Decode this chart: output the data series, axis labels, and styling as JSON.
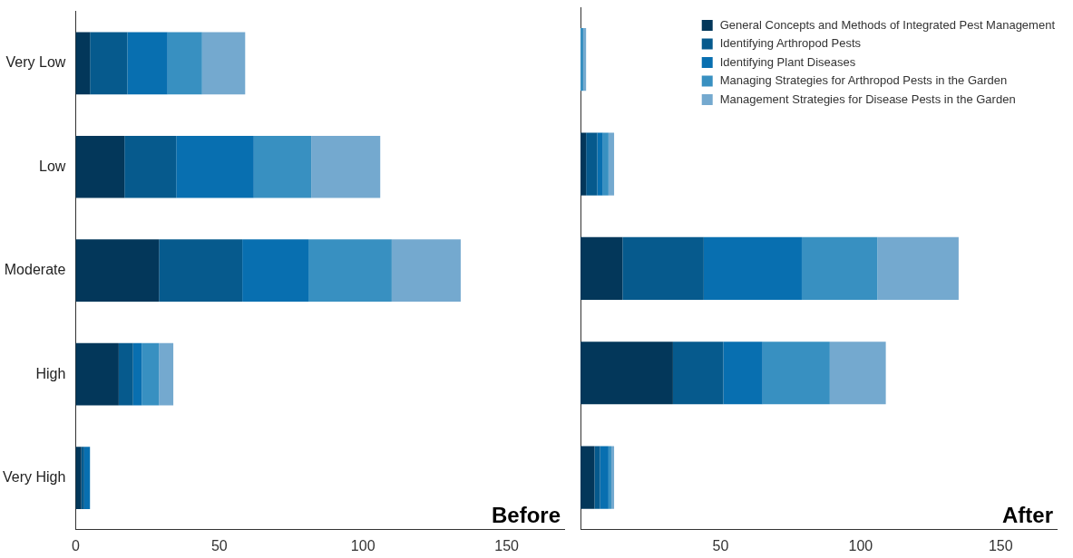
{
  "chart_data": [
    {
      "type": "bar",
      "title": "Before",
      "orientation": "horizontal",
      "stacked": true,
      "categories": [
        "Very Low",
        "Low",
        "Moderate",
        "High",
        "Very High"
      ],
      "xlim": [
        0,
        170
      ],
      "xticks": [
        0,
        50,
        100,
        150
      ],
      "legend": false,
      "series": [
        {
          "color": "#03375a",
          "values": [
            5,
            17,
            29,
            15,
            2
          ]
        },
        {
          "color": "#065a8d",
          "values": [
            13,
            18,
            29,
            5,
            1
          ]
        },
        {
          "color": "#086fb0",
          "values": [
            14,
            27,
            23,
            3,
            2
          ]
        },
        {
          "color": "#3890c1",
          "values": [
            12,
            20,
            29,
            6,
            0
          ]
        },
        {
          "color": "#74a9cf",
          "values": [
            15,
            24,
            24,
            5,
            0
          ]
        }
      ]
    },
    {
      "type": "bar",
      "title": "After",
      "orientation": "horizontal",
      "stacked": true,
      "categories": [
        null,
        null,
        null,
        null,
        null
      ],
      "xlim": [
        0,
        170
      ],
      "xticks": [
        50,
        100,
        150
      ],
      "tick_labels": "x",
      "legend": "top right",
      "series": [
        {
          "name": "General Concepts and Methods of Integrated Pest Management",
          "color": "#03375a",
          "values": [
            0,
            2,
            15,
            33,
            5
          ]
        },
        {
          "name": "Identifying Arthropod Pests",
          "color": "#065a8d",
          "values": [
            0,
            4,
            29,
            18,
            2
          ]
        },
        {
          "name": "Identifying Plant Diseases",
          "color": "#086fb0",
          "values": [
            0,
            2,
            35,
            14,
            3
          ]
        },
        {
          "name": "Managing Strategies for Arthropod Pests in the Garden",
          "color": "#3890c1",
          "values": [
            1,
            2,
            27,
            24,
            1
          ]
        },
        {
          "name": "Management Strategies for Disease Pests in the Garden",
          "color": "#74a9cf",
          "values": [
            1,
            2,
            29,
            20,
            1
          ]
        }
      ]
    }
  ]
}
